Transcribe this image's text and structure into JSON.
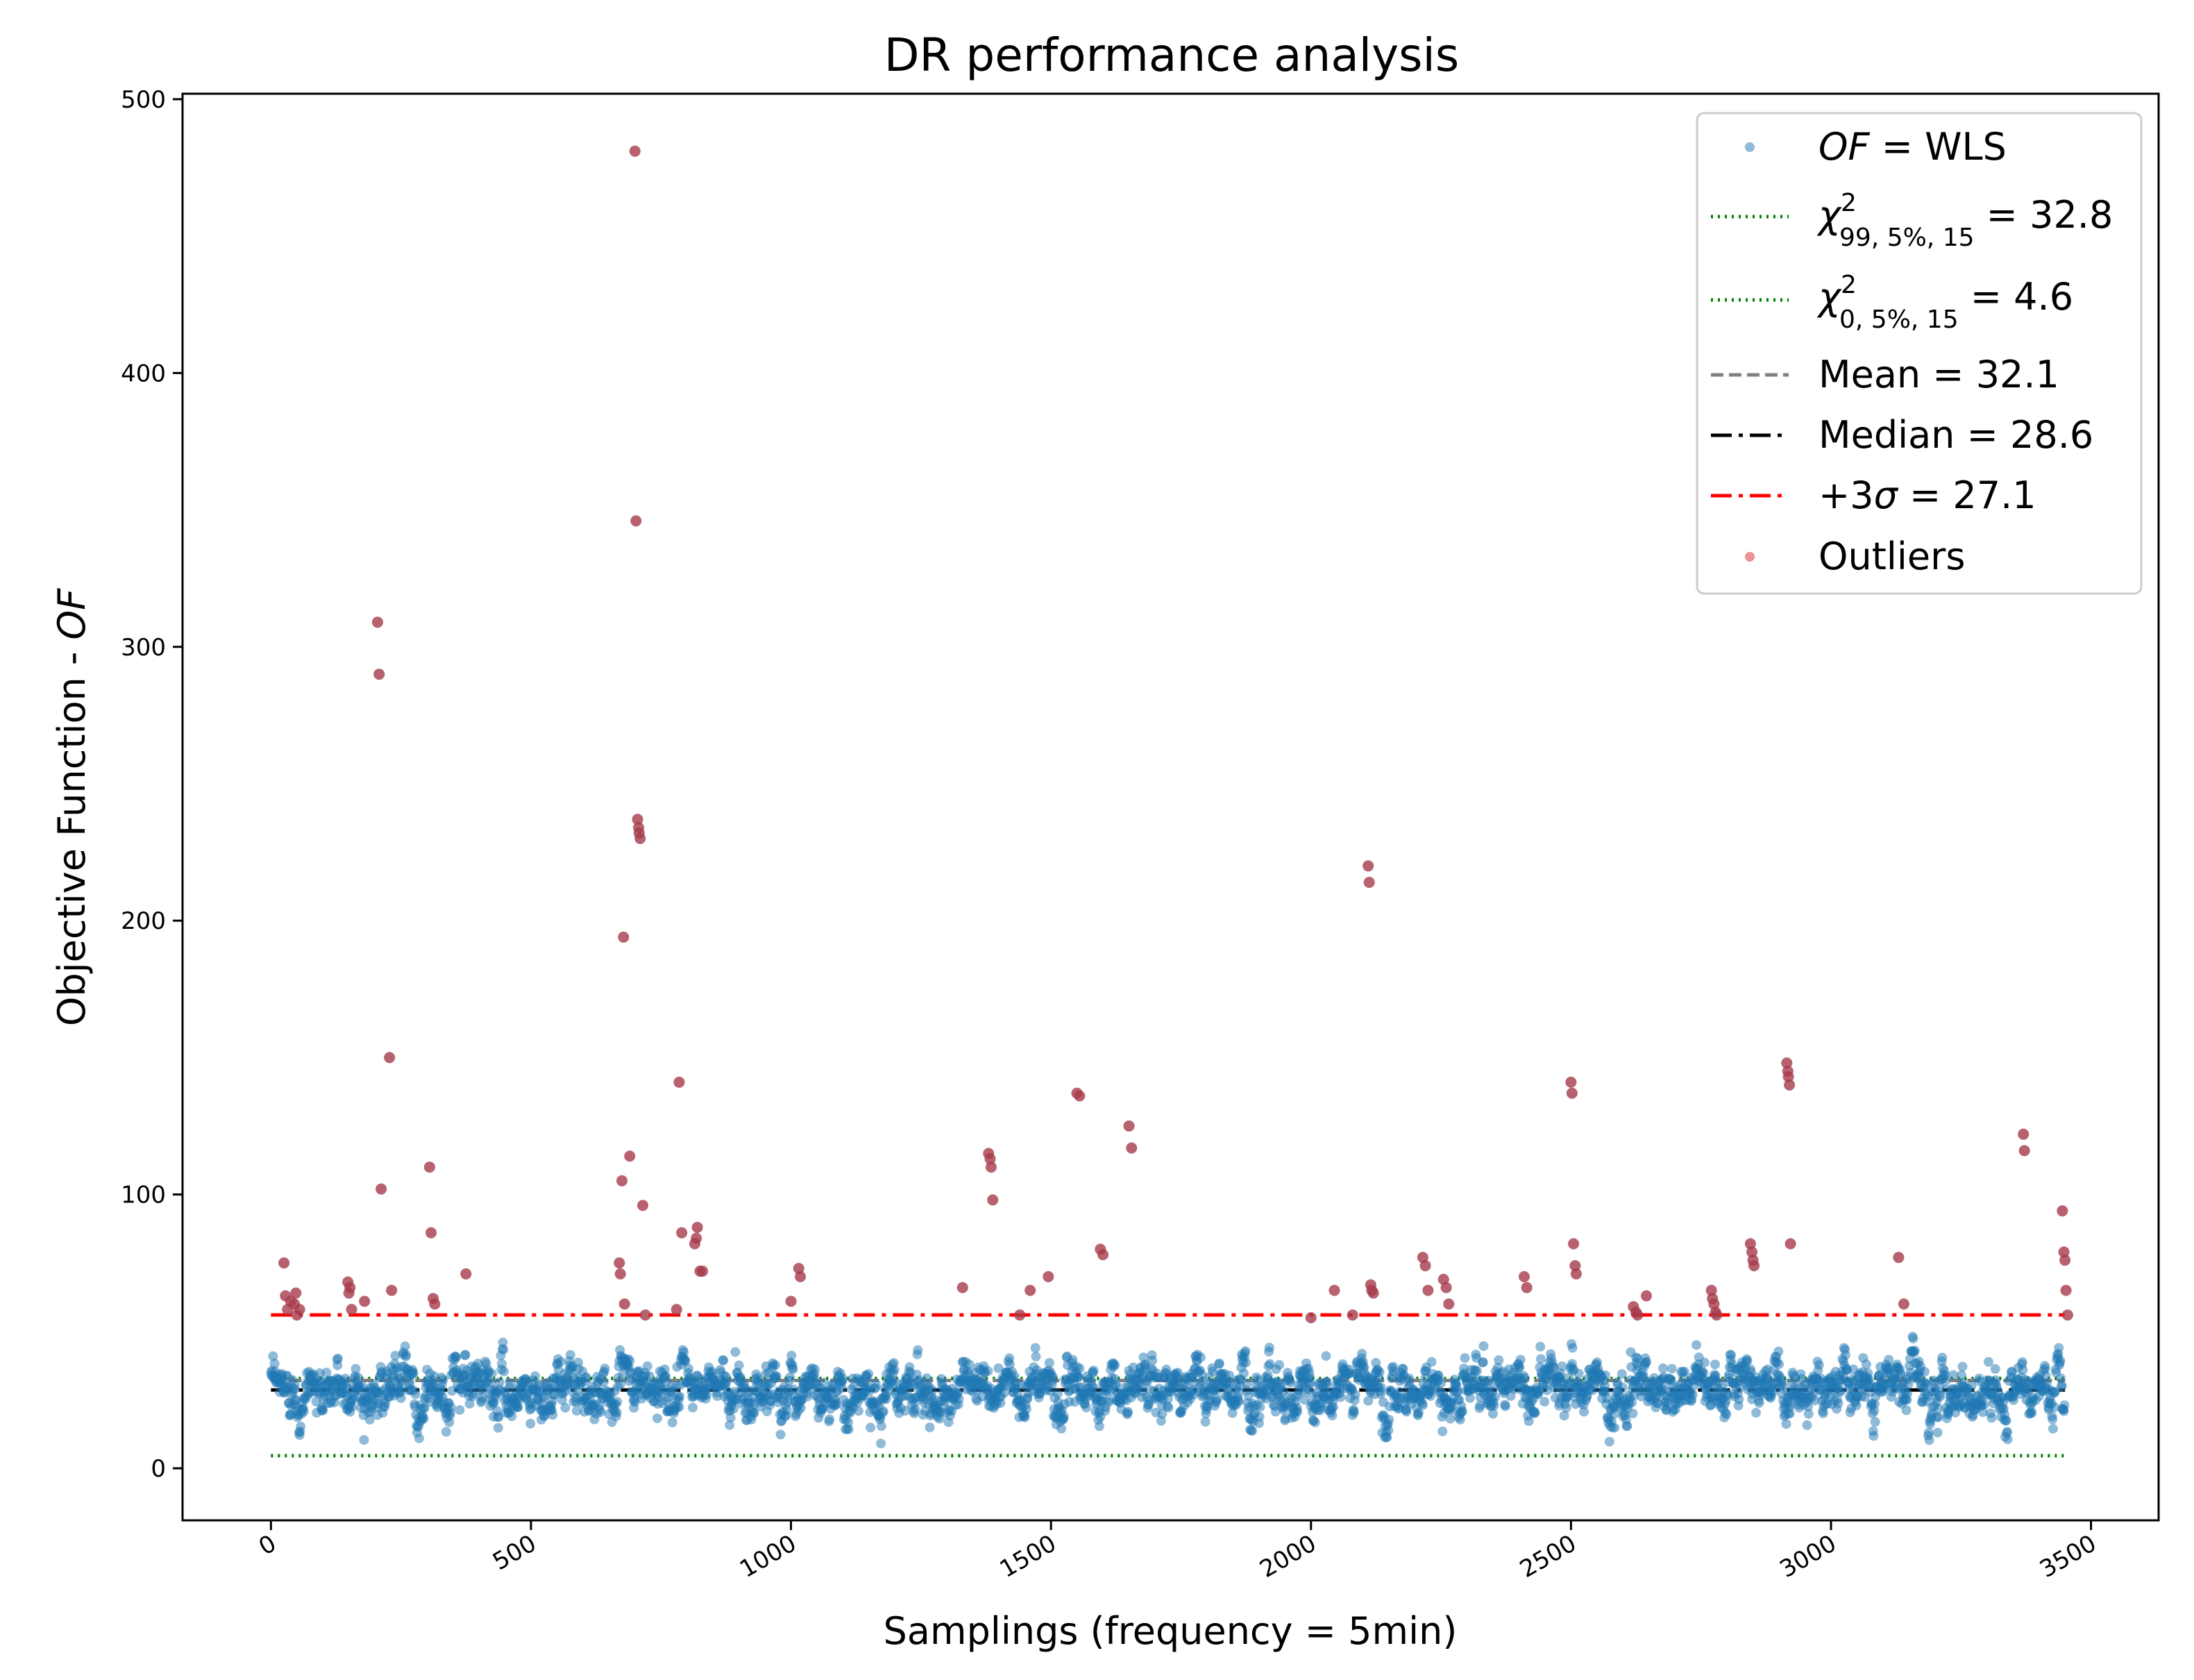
{
  "chart_data": {
    "type": "scatter",
    "title": "DR performance analysis",
    "xlabel": "Samplings (frequency = 5min)",
    "ylabel": "Objective Function - OF",
    "ylabel_prefix": "Objective Function - ",
    "ylabel_italic": "OF",
    "xlim": [
      -170,
      3630
    ],
    "ylim": [
      -19,
      502
    ],
    "xticks": [
      0,
      500,
      1000,
      1500,
      2000,
      2500,
      3000,
      3500
    ],
    "xtick_labels": [
      "0",
      "500",
      "1000",
      "1500",
      "2000",
      "2500",
      "3000",
      "3500"
    ],
    "yticks": [
      0,
      100,
      200,
      300,
      400,
      500
    ],
    "ytick_labels": [
      "0",
      "100",
      "200",
      "300",
      "400",
      "500"
    ],
    "n_samples": 3450,
    "colors": {
      "points": "#1f77b4",
      "outliers": "#d62728",
      "chi_lines": "#008000",
      "mean_line": "#808080",
      "median_line": "#000000",
      "sigma_line": "#ff0000"
    },
    "reference_lines": [
      {
        "name": "chi2_upper",
        "value": 32.8,
        "style": "dotted",
        "color": "#008000"
      },
      {
        "name": "chi2_lower",
        "value": 4.6,
        "style": "dotted",
        "color": "#008000"
      },
      {
        "name": "mean",
        "value": 32.1,
        "style": "dashed",
        "color": "#808080"
      },
      {
        "name": "median",
        "value": 28.6,
        "style": "dashdot",
        "color": "#000000"
      },
      {
        "name": "plus_3sigma_threshold",
        "value": 56,
        "style": "dashdot",
        "color": "#ff0000"
      }
    ],
    "legend": {
      "position": "top-right",
      "entries": [
        {
          "italic": "OF",
          "text": " = WLS",
          "marker": "dot",
          "color": "#1f77b4"
        },
        {
          "symbol": "χ",
          "sup": "2",
          "sub": "99, 5%, 15",
          "text": " = 32.8",
          "marker": "dotted",
          "color": "#008000"
        },
        {
          "symbol": "χ",
          "sup": "2",
          "sub": "0, 5%, 15",
          "text": " = 4.6",
          "marker": "dotted",
          "color": "#008000"
        },
        {
          "text": "Mean = 32.1",
          "marker": "dashed",
          "color": "#808080"
        },
        {
          "text": "Median = 28.6",
          "marker": "dashdot",
          "color": "#000000"
        },
        {
          "text": "+3",
          "italic": "σ",
          "suffix": " = 27.1",
          "marker": "dashdot",
          "color": "#ff0000"
        },
        {
          "text": "Outliers",
          "marker": "dot",
          "color": "#d62728"
        }
      ]
    },
    "outliers": [
      [
        25,
        75
      ],
      [
        28,
        63
      ],
      [
        32,
        58
      ],
      [
        38,
        61
      ],
      [
        45,
        60
      ],
      [
        48,
        64
      ],
      [
        50,
        56
      ],
      [
        55,
        58
      ],
      [
        148,
        68
      ],
      [
        150,
        64
      ],
      [
        152,
        66
      ],
      [
        155,
        58
      ],
      [
        180,
        61
      ],
      [
        205,
        309
      ],
      [
        208,
        290
      ],
      [
        212,
        102
      ],
      [
        228,
        150
      ],
      [
        232,
        65
      ],
      [
        305,
        110
      ],
      [
        308,
        86
      ],
      [
        312,
        62
      ],
      [
        315,
        60
      ],
      [
        375,
        71
      ],
      [
        670,
        75
      ],
      [
        672,
        71
      ],
      [
        675,
        105
      ],
      [
        678,
        194
      ],
      [
        680,
        60
      ],
      [
        690,
        114
      ],
      [
        700,
        481
      ],
      [
        702,
        346
      ],
      [
        705,
        237
      ],
      [
        707,
        234
      ],
      [
        708,
        232
      ],
      [
        710,
        230
      ],
      [
        715,
        96
      ],
      [
        720,
        56
      ],
      [
        780,
        58
      ],
      [
        785,
        141
      ],
      [
        790,
        86
      ],
      [
        815,
        82
      ],
      [
        818,
        84
      ],
      [
        820,
        88
      ],
      [
        825,
        72
      ],
      [
        830,
        72
      ],
      [
        1000,
        61
      ],
      [
        1015,
        73
      ],
      [
        1018,
        70
      ],
      [
        1330,
        66
      ],
      [
        1380,
        115
      ],
      [
        1383,
        113
      ],
      [
        1385,
        110
      ],
      [
        1388,
        98
      ],
      [
        1440,
        56
      ],
      [
        1460,
        65
      ],
      [
        1495,
        70
      ],
      [
        1550,
        137
      ],
      [
        1555,
        136
      ],
      [
        1595,
        80
      ],
      [
        1600,
        78
      ],
      [
        1650,
        125
      ],
      [
        1655,
        117
      ],
      [
        2000,
        55
      ],
      [
        2045,
        65
      ],
      [
        2080,
        56
      ],
      [
        2110,
        220
      ],
      [
        2112,
        214
      ],
      [
        2115,
        67
      ],
      [
        2117,
        65
      ],
      [
        2120,
        64
      ],
      [
        2215,
        77
      ],
      [
        2220,
        74
      ],
      [
        2225,
        65
      ],
      [
        2255,
        69
      ],
      [
        2260,
        66
      ],
      [
        2265,
        60
      ],
      [
        2410,
        70
      ],
      [
        2415,
        66
      ],
      [
        2500,
        141
      ],
      [
        2502,
        137
      ],
      [
        2505,
        82
      ],
      [
        2508,
        74
      ],
      [
        2510,
        71
      ],
      [
        2620,
        59
      ],
      [
        2625,
        57
      ],
      [
        2628,
        56
      ],
      [
        2645,
        63
      ],
      [
        2770,
        65
      ],
      [
        2772,
        62
      ],
      [
        2775,
        60
      ],
      [
        2778,
        57
      ],
      [
        2780,
        56
      ],
      [
        2845,
        82
      ],
      [
        2848,
        79
      ],
      [
        2850,
        76
      ],
      [
        2852,
        74
      ],
      [
        2915,
        148
      ],
      [
        2917,
        145
      ],
      [
        2918,
        143
      ],
      [
        2920,
        140
      ],
      [
        2922,
        82
      ],
      [
        3130,
        77
      ],
      [
        3140,
        60
      ],
      [
        3370,
        122
      ],
      [
        3372,
        116
      ],
      [
        3445,
        94
      ],
      [
        3448,
        79
      ],
      [
        3450,
        76
      ],
      [
        3452,
        65
      ],
      [
        3455,
        56
      ]
    ]
  }
}
